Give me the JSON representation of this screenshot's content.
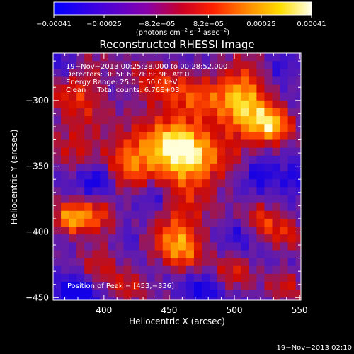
{
  "chart_data": {
    "type": "heatmap",
    "title": "Reconstructed RHESSI Image",
    "xlabel": "Heliocentric X (arcsec)",
    "ylabel": "Heliocentric Y (arcsec)",
    "xlim": [
      361,
      551
    ],
    "ylim": [
      -452,
      -264
    ],
    "x_ticks": [
      {
        "value": 400,
        "label": "400"
      },
      {
        "value": 450,
        "label": "450"
      },
      {
        "value": 500,
        "label": "500"
      },
      {
        "value": 550,
        "label": "550"
      }
    ],
    "y_ticks": [
      {
        "value": -300,
        "label": "−300"
      },
      {
        "value": -350,
        "label": "−350"
      },
      {
        "value": -400,
        "label": "−400"
      },
      {
        "value": -450,
        "label": "−450"
      }
    ],
    "colorbar": {
      "range": [
        -0.00041,
        0.00041
      ],
      "ticks": [
        {
          "value": -0.00041,
          "label": "−0.00041"
        },
        {
          "value": -0.00025,
          "label": "−0.00025"
        },
        {
          "value": -8.2e-05,
          "label": "−8.2e−05"
        },
        {
          "value": 8.2e-05,
          "label": "8.2e−05"
        },
        {
          "value": 0.00025,
          "label": "0.00025"
        },
        {
          "value": 0.00041,
          "label": "0.00041"
        }
      ],
      "unit_main": "(photons cm",
      "unit_exp1": "−2",
      "unit_mid": " s",
      "unit_exp2": "−1",
      "unit_mid2": " asec",
      "unit_exp3": "−2",
      "unit_end": ")"
    },
    "info_lines": [
      "19−Nov−2013 00:25:38.000 to 00:28:52.000",
      "Detectors: 3F 5F 6F 7F 8F 9F, Att 0",
      "Energy Range: 25.0 − 50.0 keV",
      "Clean     Total counts: 6.76E+03"
    ],
    "peak_label": "Position of Peak = [453,−336]",
    "peak": [
      453,
      -336
    ],
    "blobs": [
      {
        "x": 453,
        "y": -336,
        "amp": 1.0,
        "s": 16
      },
      {
        "x": 420,
        "y": -345,
        "amp": 0.8,
        "s": 14
      },
      {
        "x": 470,
        "y": -350,
        "amp": 0.75,
        "s": 18
      },
      {
        "x": 510,
        "y": -315,
        "amp": 0.8,
        "s": 16
      },
      {
        "x": 530,
        "y": -320,
        "amp": 0.75,
        "s": 10
      },
      {
        "x": 505,
        "y": -290,
        "amp": 0.75,
        "s": 14
      },
      {
        "x": 470,
        "y": -300,
        "amp": 0.55,
        "s": 14
      },
      {
        "x": 440,
        "y": -290,
        "amp": 0.5,
        "s": 14
      },
      {
        "x": 380,
        "y": -290,
        "amp": 0.55,
        "s": 16
      },
      {
        "x": 380,
        "y": -330,
        "amp": 0.45,
        "s": 14
      },
      {
        "x": 375,
        "y": -390,
        "amp": 0.9,
        "s": 9
      },
      {
        "x": 395,
        "y": -385,
        "amp": 0.6,
        "s": 10
      },
      {
        "x": 455,
        "y": -398,
        "amp": 0.65,
        "s": 14
      },
      {
        "x": 460,
        "y": -415,
        "amp": 0.6,
        "s": 12
      },
      {
        "x": 395,
        "y": -425,
        "amp": 0.55,
        "s": 12
      },
      {
        "x": 420,
        "y": -440,
        "amp": 0.4,
        "s": 10
      },
      {
        "x": 520,
        "y": -390,
        "amp": 0.55,
        "s": 10
      },
      {
        "x": 540,
        "y": -400,
        "amp": 0.45,
        "s": 10
      },
      {
        "x": 500,
        "y": -430,
        "amp": 0.45,
        "s": 10
      },
      {
        "x": 540,
        "y": -440,
        "amp": 0.4,
        "s": 10
      }
    ],
    "dips": [
      {
        "x": 395,
        "y": -360,
        "amp": 0.75,
        "s": 9
      },
      {
        "x": 440,
        "y": -372,
        "amp": 0.55,
        "s": 8
      },
      {
        "x": 520,
        "y": -355,
        "amp": 0.7,
        "s": 9
      },
      {
        "x": 545,
        "y": -360,
        "amp": 0.6,
        "s": 8
      },
      {
        "x": 380,
        "y": -445,
        "amp": 0.8,
        "s": 12
      },
      {
        "x": 475,
        "y": -445,
        "amp": 0.55,
        "s": 10
      },
      {
        "x": 535,
        "y": -275,
        "amp": 0.5,
        "s": 8
      },
      {
        "x": 370,
        "y": -272,
        "amp": 0.5,
        "s": 8
      },
      {
        "x": 505,
        "y": -400,
        "amp": 0.45,
        "s": 8
      },
      {
        "x": 420,
        "y": -405,
        "amp": 0.35,
        "s": 7
      }
    ]
  },
  "footer": {
    "timestamp": "19−Nov−2013 02:10"
  }
}
